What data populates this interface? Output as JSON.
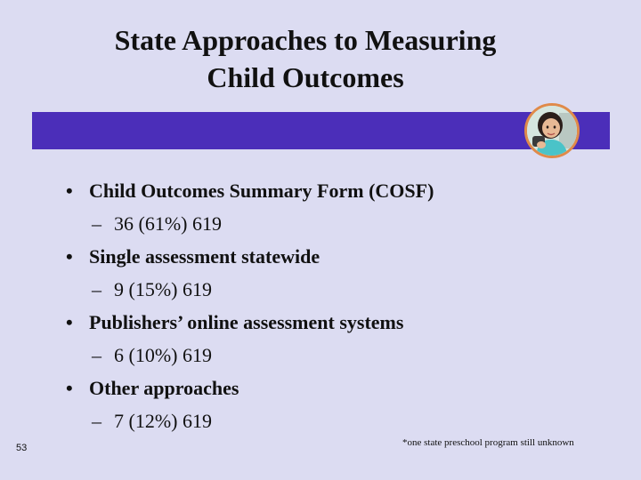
{
  "slide": {
    "title_line1": "State Approaches to Measuring",
    "title_line2": "Child Outcomes",
    "accent_color": "#4b2eb9",
    "background_color": "#dcdcf2"
  },
  "items": [
    {
      "bullet": "•",
      "label": "Child Outcomes Summary Form (COSF)",
      "dash": "–",
      "detail": "36 (61%) 619"
    },
    {
      "bullet": "•",
      "label": "Single assessment statewide",
      "dash": "–",
      "detail": "9 (15%) 619"
    },
    {
      "bullet": "•",
      "label": "Publishers’ online assessment systems",
      "dash": "–",
      "detail": "6 (10%) 619"
    },
    {
      "bullet": "•",
      "label": "Other approaches",
      "dash": "–",
      "detail": "7 (12%) 619"
    }
  ],
  "footer": {
    "page_number": "53",
    "footnote": "*one state preschool program still unknown"
  },
  "images": {
    "photo_icon": "child-photo-icon"
  }
}
